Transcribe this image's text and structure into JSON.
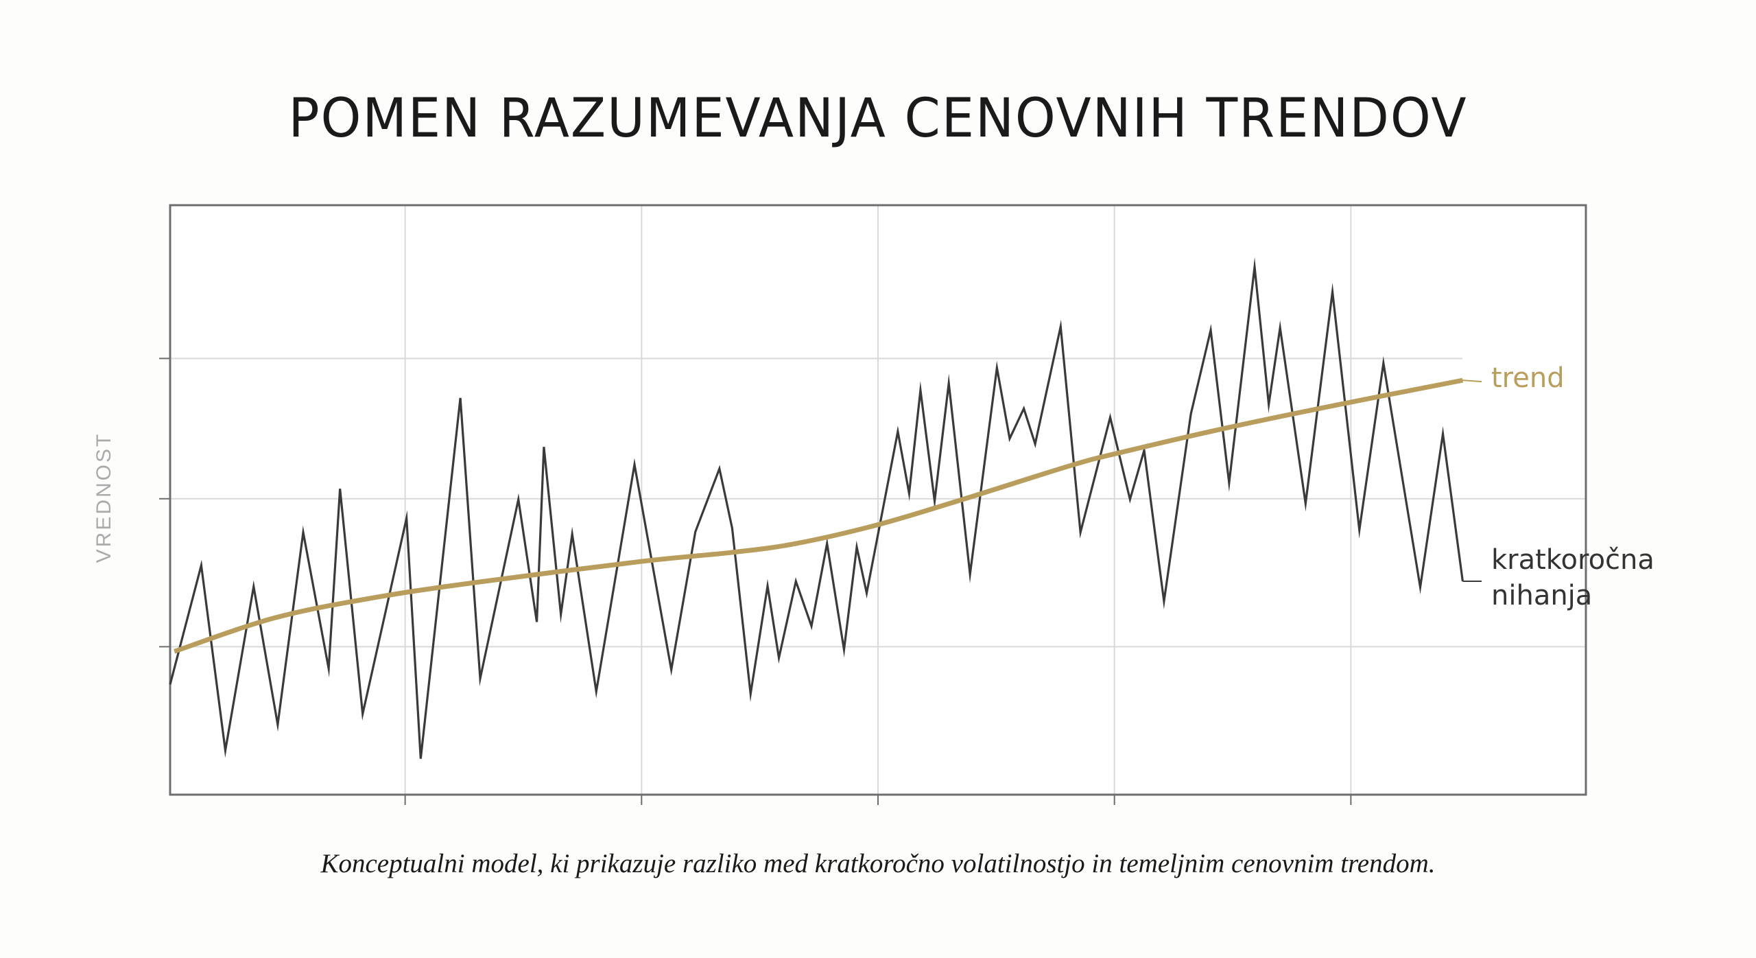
{
  "title": "POMEN RAZUMEVANJA CENOVNIH TRENDOV",
  "caption": "Konceptualni model, ki prikazuje razliko med kratkoročno volatilnostjo in temeljnim cenovnim trendom.",
  "annotations": {
    "trend": "trend",
    "volatility_line1": "kratkoročna",
    "volatility_line2": "nihanja"
  },
  "colors": {
    "background": "#fdfdfb",
    "plot_background": "#ffffff",
    "trend": "#b89d5c",
    "volatility": "#3a3a3a",
    "frame": "#6e6e6e",
    "grid": "#d9d9d9",
    "ylabel": "#aaaaaa"
  },
  "chart_data": {
    "type": "line",
    "title": "POMEN RAZUMEVANJA CENOVNIH TRENDOV",
    "xlabel": "",
    "ylabel": "VREDNOST",
    "xlim": [
      0,
      100
    ],
    "ylim": [
      0,
      100
    ],
    "grid": true,
    "tick_labels": false,
    "x_gridlines": [
      16.6,
      33.3,
      50.0,
      66.7,
      83.4
    ],
    "y_gridlines": [
      25.1,
      50.2,
      74.0
    ],
    "legend": "inline labels at right end of lines",
    "series": [
      {
        "name": "kratkoročna nihanja",
        "style": "thin dark line",
        "x": [
          0.0,
          2.2,
          3.9,
          5.9,
          7.6,
          9.4,
          11.2,
          12.0,
          13.6,
          16.7,
          17.7,
          20.5,
          21.9,
          24.6,
          25.9,
          26.4,
          27.6,
          28.4,
          30.1,
          32.8,
          35.4,
          37.1,
          38.8,
          39.7,
          41.0,
          42.2,
          43.0,
          44.2,
          45.3,
          46.4,
          47.6,
          48.5,
          49.2,
          51.4,
          52.2,
          53.0,
          54.0,
          55.0,
          56.5,
          58.4,
          59.3,
          60.3,
          61.1,
          62.9,
          64.3,
          66.4,
          67.8,
          68.8,
          70.2,
          72.1,
          73.5,
          74.8,
          76.6,
          77.6,
          78.4,
          80.2,
          82.1,
          84.0,
          85.7,
          88.3,
          89.9,
          91.3
        ],
        "y": [
          18.7,
          38.9,
          7.5,
          35.3,
          11.9,
          44.5,
          21.4,
          51.9,
          13.7,
          46.9,
          6.1,
          67.3,
          19.7,
          50.1,
          29.3,
          59.0,
          30.6,
          44.2,
          17.5,
          56.0,
          21.2,
          44.6,
          55.3,
          45.2,
          17.1,
          35.4,
          23.2,
          36.2,
          28.6,
          42.6,
          24.6,
          42.0,
          34.2,
          61.6,
          51.1,
          68.6,
          49.8,
          69.8,
          37.4,
          72.4,
          60.4,
          65.5,
          59.5,
          79.4,
          44.5,
          64.0,
          50.1,
          58.4,
          32.8,
          64.6,
          78.8,
          52.9,
          89.5,
          66.2,
          79.2,
          49.4,
          85.3,
          44.9,
          73.2,
          35.2,
          61.2,
          36.2
        ]
      },
      {
        "name": "trend",
        "style": "thick gold smooth line",
        "x": [
          0.3,
          7.4,
          14.6,
          21.9,
          33.4,
          39.7,
          44.2,
          50.0,
          56.0,
          63.7,
          67.4,
          74.6,
          82.6,
          91.3
        ],
        "y": [
          24.3,
          30.0,
          33.5,
          36.1,
          39.6,
          41.1,
          42.6,
          45.8,
          50.1,
          55.9,
          58.2,
          62.2,
          66.2,
          70.3
        ]
      }
    ]
  }
}
